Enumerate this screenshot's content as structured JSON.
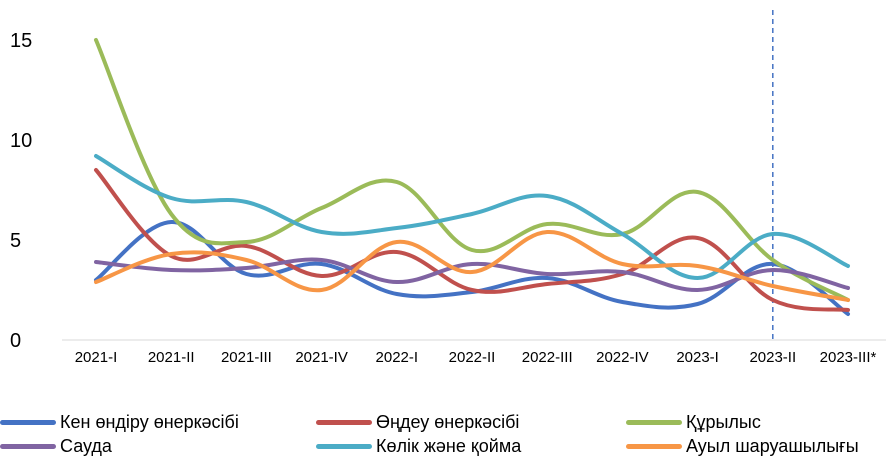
{
  "chart_data": {
    "type": "line",
    "categories": [
      "2021-I",
      "2021-II",
      "2021-III",
      "2021-IV",
      "2022-I",
      "2022-II",
      "2022-III",
      "2022-IV",
      "2023-I",
      "2023-II",
      "2023-III*"
    ],
    "ylim": [
      0,
      15
    ],
    "yticks": [
      0,
      5,
      10,
      15
    ],
    "grid": false,
    "legend_position": "bottom",
    "reference_line": {
      "category": "2023-II",
      "style": "dashed",
      "color": "#4472C4"
    },
    "series": [
      {
        "name": "Кен өндіру өнеркәсібі",
        "color": "#4472C4",
        "values": [
          3.0,
          5.9,
          3.3,
          3.8,
          2.3,
          2.4,
          3.1,
          1.9,
          1.8,
          3.8,
          1.3
        ]
      },
      {
        "name": "Өңдеу өнеркәсібі",
        "color": "#C0504D",
        "values": [
          8.5,
          4.2,
          4.7,
          3.2,
          4.4,
          2.5,
          2.8,
          3.3,
          5.1,
          2.0,
          1.5
        ]
      },
      {
        "name": "Құрылыс",
        "color": "#9BBB59",
        "values": [
          15.0,
          6.3,
          4.9,
          6.6,
          7.9,
          4.5,
          5.8,
          5.3,
          7.4,
          4.0,
          2.0
        ]
      },
      {
        "name": "Сауда",
        "color": "#8064A2",
        "values": [
          3.9,
          3.5,
          3.6,
          4.0,
          2.9,
          3.8,
          3.3,
          3.4,
          2.5,
          3.5,
          2.6
        ]
      },
      {
        "name": "Көлік және қойма",
        "color": "#4BACC6",
        "values": [
          9.2,
          7.1,
          6.9,
          5.4,
          5.6,
          6.3,
          7.2,
          5.3,
          3.1,
          5.3,
          3.7
        ]
      },
      {
        "name": "Ауыл шаруашылығы",
        "color": "#F79646",
        "values": [
          2.9,
          4.3,
          4.0,
          2.5,
          4.9,
          3.4,
          5.4,
          3.8,
          3.7,
          2.7,
          2.0
        ]
      }
    ]
  }
}
